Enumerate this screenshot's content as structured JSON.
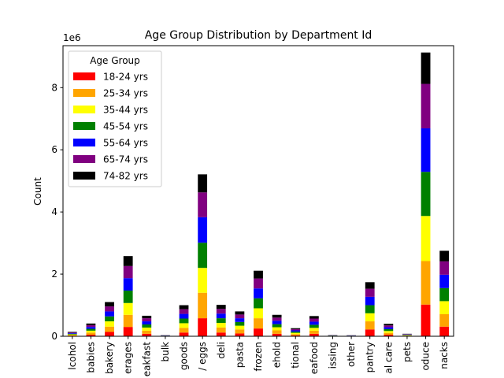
{
  "chart_data": {
    "type": "bar",
    "stacked": true,
    "title": "Age Group Distribution by Department Id",
    "xlabel": "",
    "ylabel": "Count",
    "y_offset_label": "1e6",
    "ylim": [
      0,
      9.35
    ],
    "y_ticks": [
      0,
      2,
      4,
      6,
      8
    ],
    "grid": false,
    "legend": {
      "title": "Age Group",
      "placement": "upper left"
    },
    "categories": [
      "alcohol",
      "babies",
      "bakery",
      "beverages",
      "breakfast",
      "bulk",
      "canned goods",
      "dairy eggs",
      "deli",
      "pasta",
      "frozen",
      "household",
      "international",
      "seafood",
      "missing",
      "other",
      "pantry",
      "personal care",
      "pets",
      "produce",
      "snacks"
    ],
    "category_labels_visible": [
      "lcohol",
      "babies",
      "bakery",
      "erages",
      "eakfast",
      "bulk",
      "goods",
      "/ eggs",
      "deli",
      "pasta",
      "frozen",
      "ehold",
      "tional",
      "eafood",
      "issing",
      "other",
      "pantry",
      "al care",
      "pets",
      "oduce",
      "nacks"
    ],
    "series": [
      {
        "name": "18-24 yrs",
        "color": "#ff0000",
        "values": [
          0.02,
          0.05,
          0.14,
          0.3,
          0.08,
          0.005,
          0.12,
          0.58,
          0.12,
          0.09,
          0.25,
          0.08,
          0.03,
          0.08,
          0.005,
          0.004,
          0.22,
          0.05,
          0.01,
          1.02,
          0.31
        ]
      },
      {
        "name": "25-34 yrs",
        "color": "#ffa500",
        "values": [
          0.02,
          0.07,
          0.17,
          0.39,
          0.1,
          0.005,
          0.15,
          0.82,
          0.16,
          0.13,
          0.33,
          0.11,
          0.04,
          0.1,
          0.006,
          0.005,
          0.26,
          0.06,
          0.012,
          1.4,
          0.4
        ]
      },
      {
        "name": "35-44 yrs",
        "color": "#ffff00",
        "values": [
          0.02,
          0.06,
          0.17,
          0.38,
          0.1,
          0.005,
          0.15,
          0.8,
          0.15,
          0.12,
          0.32,
          0.1,
          0.04,
          0.09,
          0.006,
          0.005,
          0.26,
          0.06,
          0.012,
          1.45,
          0.42
        ]
      },
      {
        "name": "45-54 yrs",
        "color": "#008000",
        "values": [
          0.02,
          0.06,
          0.16,
          0.4,
          0.1,
          0.005,
          0.15,
          0.81,
          0.15,
          0.12,
          0.32,
          0.1,
          0.04,
          0.1,
          0.006,
          0.005,
          0.26,
          0.06,
          0.012,
          1.42,
          0.42
        ]
      },
      {
        "name": "55-64 yrs",
        "color": "#0000ff",
        "values": [
          0.02,
          0.06,
          0.16,
          0.4,
          0.1,
          0.005,
          0.15,
          0.82,
          0.15,
          0.12,
          0.32,
          0.11,
          0.04,
          0.1,
          0.006,
          0.005,
          0.27,
          0.06,
          0.012,
          1.4,
          0.43
        ]
      },
      {
        "name": "65-74 yrs",
        "color": "#800080",
        "values": [
          0.02,
          0.06,
          0.16,
          0.39,
          0.1,
          0.005,
          0.15,
          0.8,
          0.15,
          0.12,
          0.32,
          0.1,
          0.04,
          0.1,
          0.006,
          0.005,
          0.26,
          0.06,
          0.012,
          1.43,
          0.43
        ]
      },
      {
        "name": "74-82 yrs",
        "color": "#000000",
        "values": [
          0.02,
          0.05,
          0.14,
          0.32,
          0.08,
          0.005,
          0.13,
          0.58,
          0.13,
          0.1,
          0.25,
          0.09,
          0.03,
          0.08,
          0.005,
          0.004,
          0.21,
          0.05,
          0.01,
          1.01,
          0.34
        ]
      }
    ]
  }
}
